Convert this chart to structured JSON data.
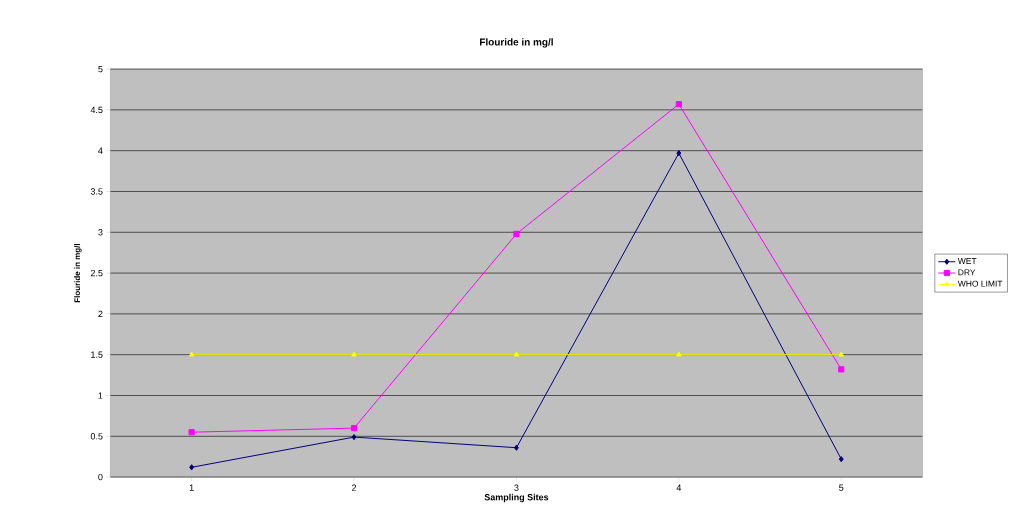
{
  "chart_data": {
    "type": "line",
    "title": "Flouride in mg/l",
    "xlabel": "Sampling Sites",
    "ylabel": "Flouride in mg/l",
    "categories": [
      "1",
      "2",
      "3",
      "4",
      "5"
    ],
    "series": [
      {
        "name": "WET",
        "color": "#000080",
        "marker": "diamond",
        "values": [
          0.12,
          0.49,
          0.36,
          3.97,
          0.22
        ]
      },
      {
        "name": "DRY",
        "color": "#ff00ff",
        "marker": "square",
        "values": [
          0.55,
          0.6,
          2.98,
          4.57,
          1.32
        ]
      },
      {
        "name": "WHO LIMIT",
        "color": "#ffff00",
        "marker": "triangle",
        "values": [
          1.5,
          1.5,
          1.5,
          1.5,
          1.5
        ]
      }
    ],
    "ylim": [
      0,
      5
    ],
    "yticks": [
      0,
      0.5,
      1,
      1.5,
      2,
      2.5,
      3,
      3.5,
      4,
      4.5,
      5
    ],
    "grid": "y",
    "legend": "right",
    "line_style": "solid"
  }
}
